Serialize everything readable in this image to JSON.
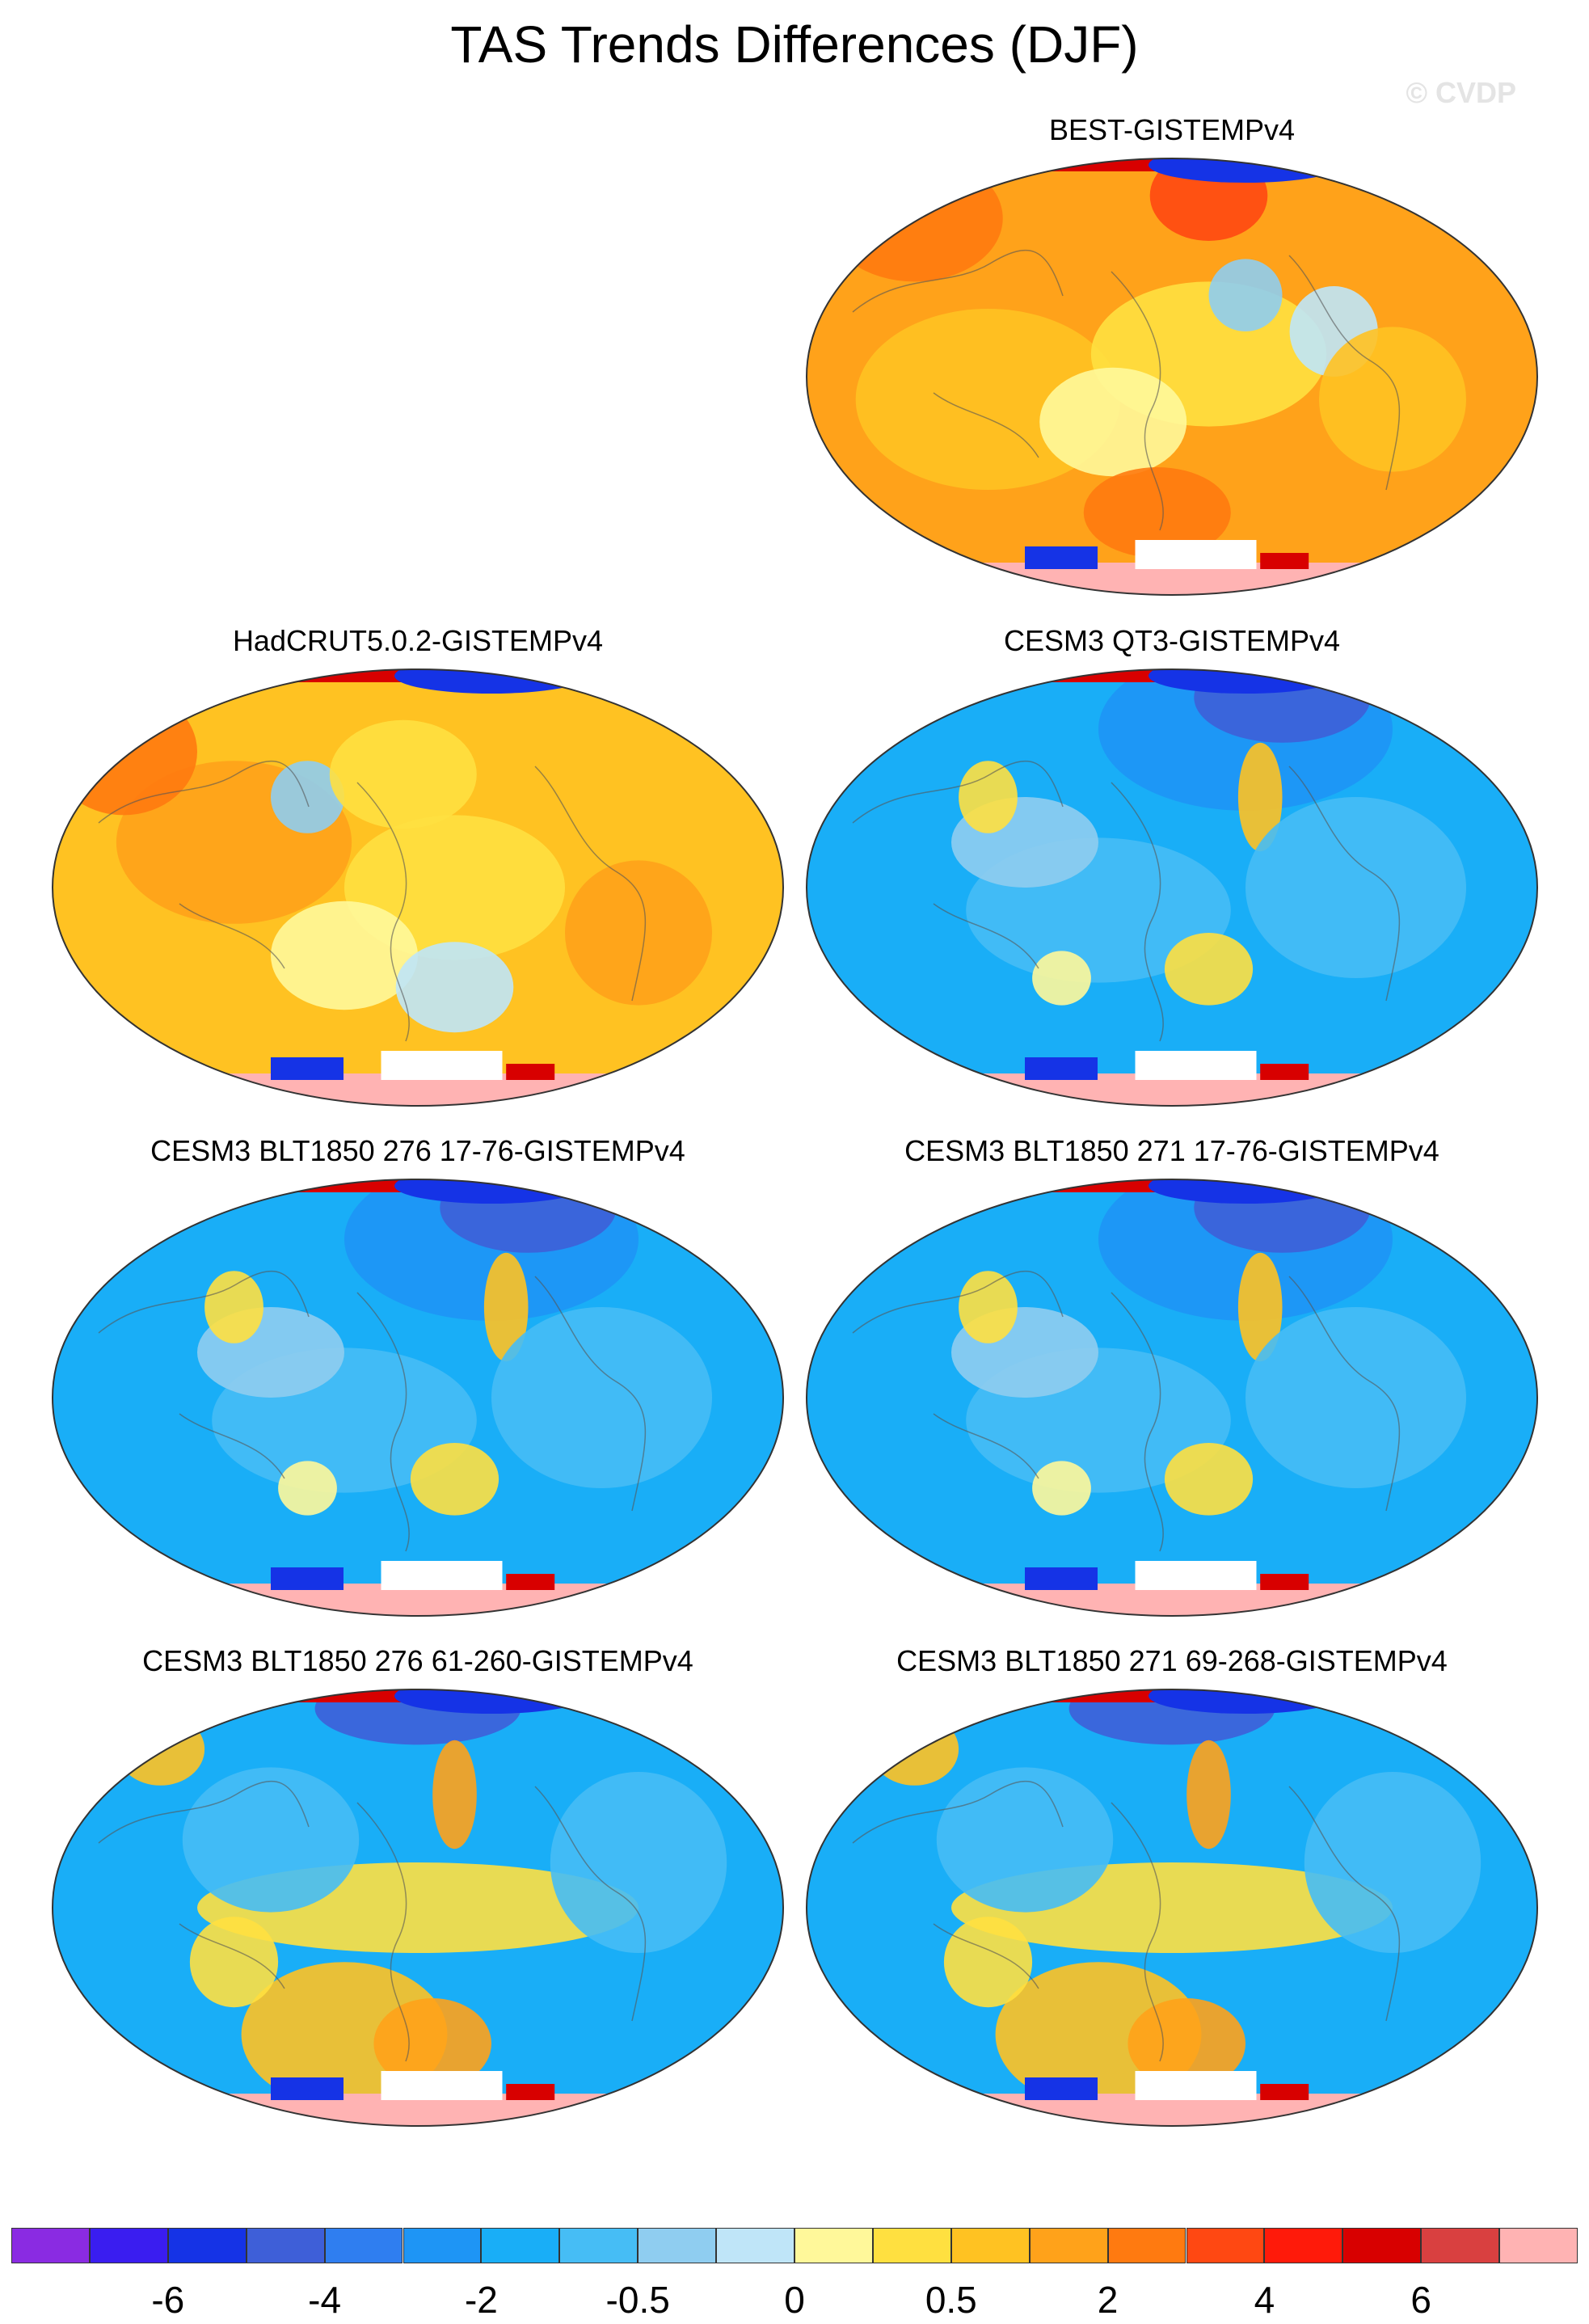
{
  "title": "TAS Trends Differences (DJF)",
  "watermark": "© CVDP",
  "panels": [
    {
      "title": "BEST-GISTEMPv4",
      "style": "warm"
    },
    {
      "title": "HadCRUT5.0.2-GISTEMPv4",
      "style": "warm2"
    },
    {
      "title": "CESM3 QT3-GISTEMPv4",
      "style": "cool"
    },
    {
      "title": "CESM3 BLT1850 276 17-76-GISTEMPv4",
      "style": "cool"
    },
    {
      "title": "CESM3 BLT1850 271 17-76-GISTEMPv4",
      "style": "cool"
    },
    {
      "title": "CESM3 BLT1850 276 61-260-GISTEMPv4",
      "style": "mixed"
    },
    {
      "title": "CESM3 BLT1850 271 69-268-GISTEMPv4",
      "style": "mixed"
    }
  ],
  "colorbar": {
    "colors": [
      "#8a2be2",
      "#3a1df0",
      "#1533e6",
      "#3e5fd8",
      "#2f7ef0",
      "#1e95f5",
      "#19aef7",
      "#46bdf5",
      "#8fcdf0",
      "#bfe5f8",
      "#fff89a",
      "#ffe040",
      "#ffc222",
      "#ffa21a",
      "#ff7a10",
      "#ff4812",
      "#ff1a0a",
      "#d80000",
      "#d94040",
      "#ffb3b3"
    ],
    "labels": [
      "-6",
      "-4",
      "-2",
      "-0.5",
      "0",
      "0.5",
      "2",
      "4",
      "6"
    ]
  }
}
